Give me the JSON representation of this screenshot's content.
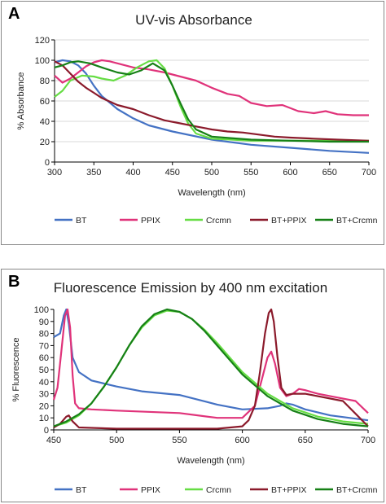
{
  "chart_data": [
    {
      "panel_label": "A",
      "type": "line",
      "title": "UV-vis Absorbance",
      "xlabel": "Wavelength (nm)",
      "ylabel": "% Absorbance",
      "xlim": [
        300,
        700
      ],
      "ylim": [
        0,
        120
      ],
      "xticks": [
        300,
        350,
        400,
        450,
        500,
        550,
        600,
        650,
        700
      ],
      "yticks": [
        0,
        20,
        40,
        60,
        80,
        100,
        120
      ],
      "grid": "horizontal",
      "legend_position": "bottom",
      "series": [
        {
          "name": "BT",
          "color": "#4472C4",
          "x": [
            300,
            310,
            320,
            330,
            340,
            350,
            360,
            380,
            400,
            420,
            450,
            500,
            550,
            600,
            650,
            700
          ],
          "y": [
            98,
            100,
            99,
            95,
            87,
            75,
            65,
            52,
            43,
            36,
            30,
            22,
            17,
            14,
            11,
            9
          ]
        },
        {
          "name": "PPIX",
          "color": "#E0337A",
          "x": [
            300,
            310,
            320,
            330,
            340,
            350,
            360,
            370,
            380,
            400,
            420,
            440,
            460,
            480,
            500,
            520,
            535,
            550,
            570,
            590,
            610,
            630,
            645,
            660,
            680,
            700
          ],
          "y": [
            85,
            78,
            82,
            88,
            94,
            98,
            100,
            99,
            97,
            93,
            91,
            88,
            84,
            80,
            73,
            67,
            65,
            58,
            55,
            56,
            50,
            48,
            50,
            47,
            46,
            46
          ]
        },
        {
          "name": "Crcmn",
          "color": "#66DD44",
          "x": [
            300,
            310,
            320,
            335,
            350,
            360,
            375,
            390,
            405,
            420,
            430,
            440,
            450,
            460,
            470,
            480,
            500,
            550,
            600,
            650,
            700
          ],
          "y": [
            64,
            70,
            80,
            85,
            84,
            82,
            80,
            85,
            93,
            99,
            100,
            92,
            75,
            55,
            38,
            28,
            23,
            21,
            21,
            21,
            21
          ]
        },
        {
          "name": "BT+PPIX",
          "color": "#8B1A2B",
          "x": [
            300,
            310,
            320,
            330,
            340,
            350,
            360,
            380,
            400,
            420,
            440,
            460,
            480,
            500,
            520,
            540,
            560,
            580,
            600,
            630,
            660,
            700
          ],
          "y": [
            99,
            95,
            87,
            79,
            73,
            68,
            63,
            56,
            52,
            46,
            41,
            38,
            35,
            32,
            30,
            29,
            27,
            25,
            24,
            23,
            22,
            21
          ]
        },
        {
          "name": "BT+Crcmn",
          "color": "#168016",
          "x": [
            300,
            310,
            320,
            330,
            345,
            360,
            380,
            395,
            410,
            425,
            440,
            450,
            460,
            470,
            480,
            500,
            550,
            600,
            650,
            700
          ],
          "y": [
            93,
            95,
            98,
            99,
            97,
            93,
            88,
            86,
            90,
            97,
            90,
            75,
            58,
            42,
            32,
            25,
            22,
            21,
            20,
            20
          ]
        }
      ]
    },
    {
      "panel_label": "B",
      "type": "line",
      "title": "Fluorescence Emission by 400 nm excitation",
      "xlabel": "Wavelength (nm)",
      "ylabel": "% Fluorescence",
      "xlim": [
        450,
        700
      ],
      "ylim": [
        0,
        100
      ],
      "xticks": [
        450,
        500,
        550,
        600,
        650,
        700
      ],
      "yticks": [
        0,
        10,
        20,
        30,
        40,
        50,
        60,
        70,
        80,
        90,
        100
      ],
      "grid": "none",
      "legend_position": "bottom",
      "series": [
        {
          "name": "BT",
          "color": "#4472C4",
          "x": [
            450,
            455,
            458,
            460,
            462,
            465,
            470,
            480,
            500,
            520,
            550,
            580,
            600,
            620,
            630,
            635,
            640,
            650,
            670,
            700
          ],
          "y": [
            77,
            80,
            95,
            100,
            88,
            60,
            48,
            41,
            36,
            32,
            29,
            21,
            17,
            18,
            20,
            22,
            21,
            17,
            12,
            8
          ]
        },
        {
          "name": "PPIX",
          "color": "#E0337A",
          "x": [
            450,
            453,
            456,
            459,
            461,
            463,
            465,
            467,
            470,
            480,
            500,
            550,
            580,
            600,
            610,
            615,
            620,
            623,
            626,
            630,
            635,
            640,
            645,
            650,
            660,
            670,
            690,
            700
          ],
          "y": [
            25,
            35,
            65,
            95,
            100,
            85,
            45,
            22,
            18,
            17,
            16,
            14,
            10,
            10,
            20,
            40,
            60,
            65,
            55,
            35,
            28,
            30,
            34,
            33,
            30,
            28,
            24,
            14
          ]
        },
        {
          "name": "Crcmn",
          "color": "#66DD44",
          "x": [
            450,
            460,
            470,
            480,
            490,
            500,
            510,
            520,
            530,
            540,
            550,
            560,
            570,
            580,
            590,
            600,
            620,
            640,
            660,
            680,
            700
          ],
          "y": [
            3,
            6,
            12,
            22,
            36,
            52,
            70,
            85,
            95,
            99,
            98,
            92,
            83,
            72,
            60,
            48,
            30,
            18,
            11,
            7,
            5
          ]
        },
        {
          "name": "BT+PPIX",
          "color": "#8B1A2B",
          "x": [
            450,
            455,
            460,
            462,
            465,
            470,
            500,
            550,
            580,
            600,
            605,
            610,
            614,
            618,
            621,
            623,
            625,
            628,
            631,
            635,
            640,
            650,
            660,
            680,
            700
          ],
          "y": [
            2,
            5,
            11,
            12,
            7,
            2,
            1,
            1,
            1,
            3,
            8,
            20,
            48,
            80,
            97,
            100,
            90,
            60,
            35,
            29,
            30,
            30,
            28,
            24,
            3
          ]
        },
        {
          "name": "BT+Crcmn",
          "color": "#168016",
          "x": [
            450,
            460,
            470,
            480,
            490,
            500,
            510,
            520,
            530,
            540,
            550,
            560,
            570,
            580,
            590,
            600,
            620,
            640,
            660,
            680,
            700
          ],
          "y": [
            3,
            7,
            13,
            22,
            36,
            52,
            70,
            86,
            96,
            100,
            98,
            92,
            82,
            70,
            58,
            46,
            28,
            16,
            9,
            5,
            3
          ]
        }
      ]
    }
  ]
}
